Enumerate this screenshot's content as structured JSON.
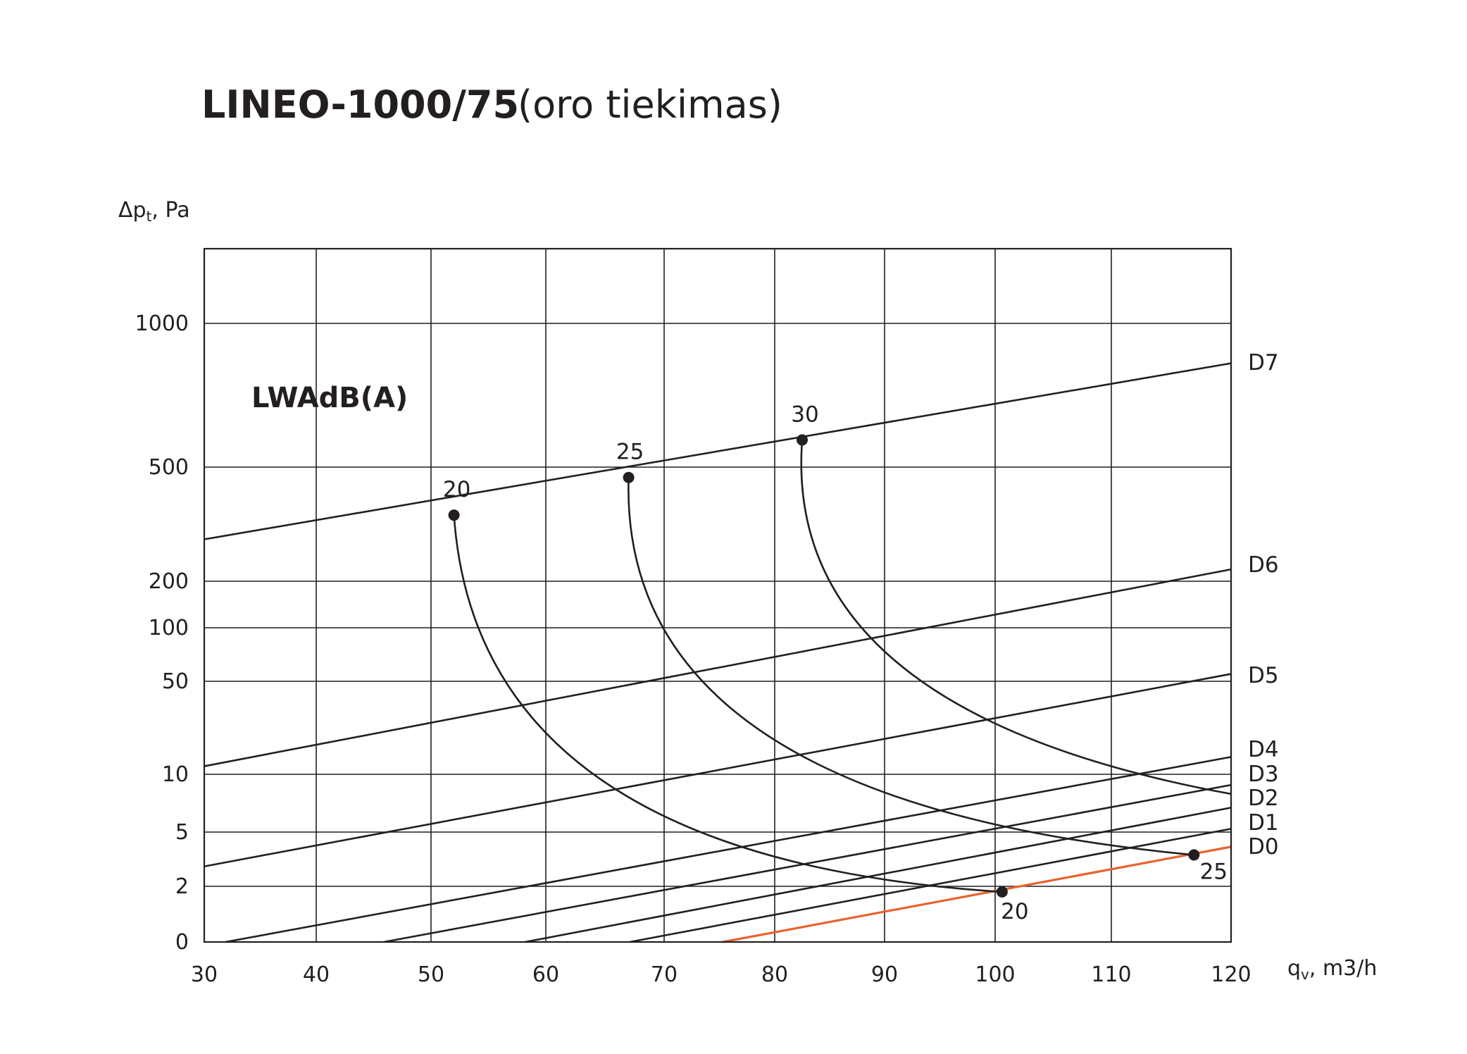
{
  "chart_data": {
    "type": "line",
    "title": "LINEO-1000/75",
    "subtitle": "(oro tiekimas)",
    "ylabel": {
      "main": "Δp",
      "sub": "t",
      "rest": ", Pa"
    },
    "xlabel": {
      "main": "q",
      "sub": "v",
      "rest": ", m3/h"
    },
    "xlim": [
      30,
      120
    ],
    "xticks": [
      30,
      40,
      50,
      60,
      70,
      80,
      90,
      100,
      110,
      120
    ],
    "xtick_labels": [
      "30",
      "40",
      "50",
      "60",
      "70",
      "80",
      "90",
      "100",
      "110",
      "120"
    ],
    "y_scale": "non-linear (pressure scale as printed)",
    "yticks": [
      0,
      2,
      5,
      10,
      50,
      100,
      200,
      500,
      1000
    ],
    "ytick_labels": [
      "0",
      "2",
      "5",
      "10",
      "50",
      "100",
      "200",
      "500",
      "1000"
    ],
    "grid": true,
    "accent_color": "#e8642c",
    "line_color": "#231f20",
    "note": "LWAdB(A)",
    "series": [
      {
        "name": "D7",
        "points": [
          [
            30,
            280
          ],
          [
            120,
            825
          ]
        ]
      },
      {
        "name": "D6",
        "points": [
          [
            30,
            11.5
          ],
          [
            120,
            220
          ]
        ]
      },
      {
        "name": "D5",
        "points": [
          [
            30,
            2.8
          ],
          [
            120,
            55
          ]
        ]
      },
      {
        "name": "D4",
        "points": [
          [
            31.9,
            0
          ],
          [
            120,
            13.5
          ]
        ]
      },
      {
        "name": "D3",
        "points": [
          [
            45.9,
            0
          ],
          [
            120,
            8.8
          ]
        ]
      },
      {
        "name": "D2",
        "points": [
          [
            58.2,
            0
          ],
          [
            120,
            6.7
          ]
        ]
      },
      {
        "name": "D1",
        "points": [
          [
            67.1,
            0
          ],
          [
            120,
            5.2
          ]
        ]
      },
      {
        "name": "D0",
        "points": [
          [
            75.3,
            0
          ],
          [
            120,
            3.9
          ]
        ],
        "highlight": true
      }
    ],
    "sound_curves": [
      {
        "level": "20",
        "start": [
          52,
          340
        ],
        "end": [
          100.6,
          1.8
        ]
      },
      {
        "level": "25",
        "start": [
          67,
          460
        ],
        "end": [
          116.9,
          3.4
        ]
      },
      {
        "level": "30",
        "start": [
          82.5,
          570
        ],
        "end": [
          120,
          7.9
        ]
      }
    ],
    "curve_labels": {
      "top": [
        "20",
        "25",
        "30"
      ],
      "bottom": [
        "20",
        "25"
      ]
    },
    "legend_placement": "right"
  }
}
